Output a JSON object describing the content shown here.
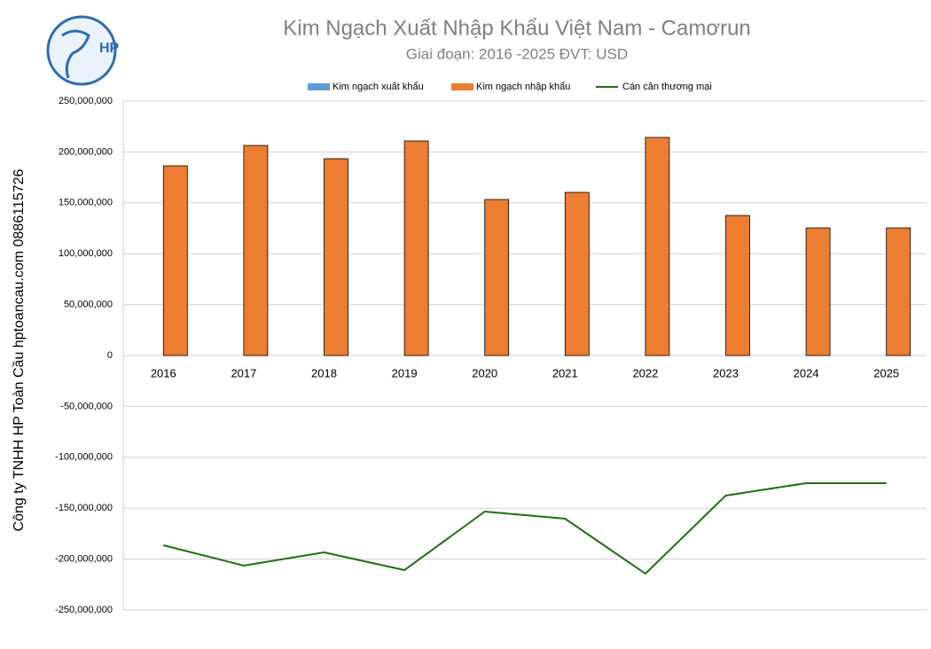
{
  "chart_data": {
    "type": "bar",
    "title": "Kim Ngạch Xuất Nhập Khẩu Việt Nam - Camơrun",
    "subtitle": "Giai đoạn: 2016 -2025  ĐVT: USD",
    "side_text": "Công ty TNHH HP Toàn Cầu hptoancau.com 0886115726",
    "categories": [
      "2016",
      "2017",
      "2018",
      "2019",
      "2020",
      "2021",
      "2022",
      "2023",
      "2024",
      "2025"
    ],
    "series": [
      {
        "name": "Kim ngạch xuất khẩu",
        "type": "bar",
        "color": "#5b9bd5",
        "values": [
          0,
          0,
          0,
          0,
          0,
          0,
          0,
          0,
          0,
          0
        ]
      },
      {
        "name": "Kim ngạch nhập khẩu",
        "type": "bar",
        "color": "#ed7d31",
        "values": [
          186400000,
          206400000,
          193400000,
          210800000,
          153300000,
          160300000,
          214300000,
          137600000,
          125400000,
          125400000
        ]
      },
      {
        "name": "Cán cân thương mại",
        "type": "line",
        "color": "#1f6e12",
        "values": [
          -186400000,
          -206400000,
          -193400000,
          -210800000,
          -153300000,
          -160300000,
          -214300000,
          -137600000,
          -125400000,
          -125400000
        ]
      }
    ],
    "ylim": [
      -250000000,
      250000000
    ],
    "yticks": [
      {
        "value": -250000000,
        "label": "-250,000,000"
      },
      {
        "value": -200000000,
        "label": "-200,000,000"
      },
      {
        "value": -150000000,
        "label": "-150,000,000"
      },
      {
        "value": -100000000,
        "label": "-100,000,000"
      },
      {
        "value": -50000000,
        "label": "-50,000,000"
      },
      0,
      {
        "value": 50000000,
        "label": "50,000,000"
      },
      {
        "value": 100000000,
        "label": "100,000,000"
      },
      {
        "value": 150000000,
        "label": "150,000,000"
      },
      {
        "value": 200000000,
        "label": "200,000,000"
      },
      {
        "value": 250000000,
        "label": "250,000,000"
      }
    ],
    "grid": true
  }
}
